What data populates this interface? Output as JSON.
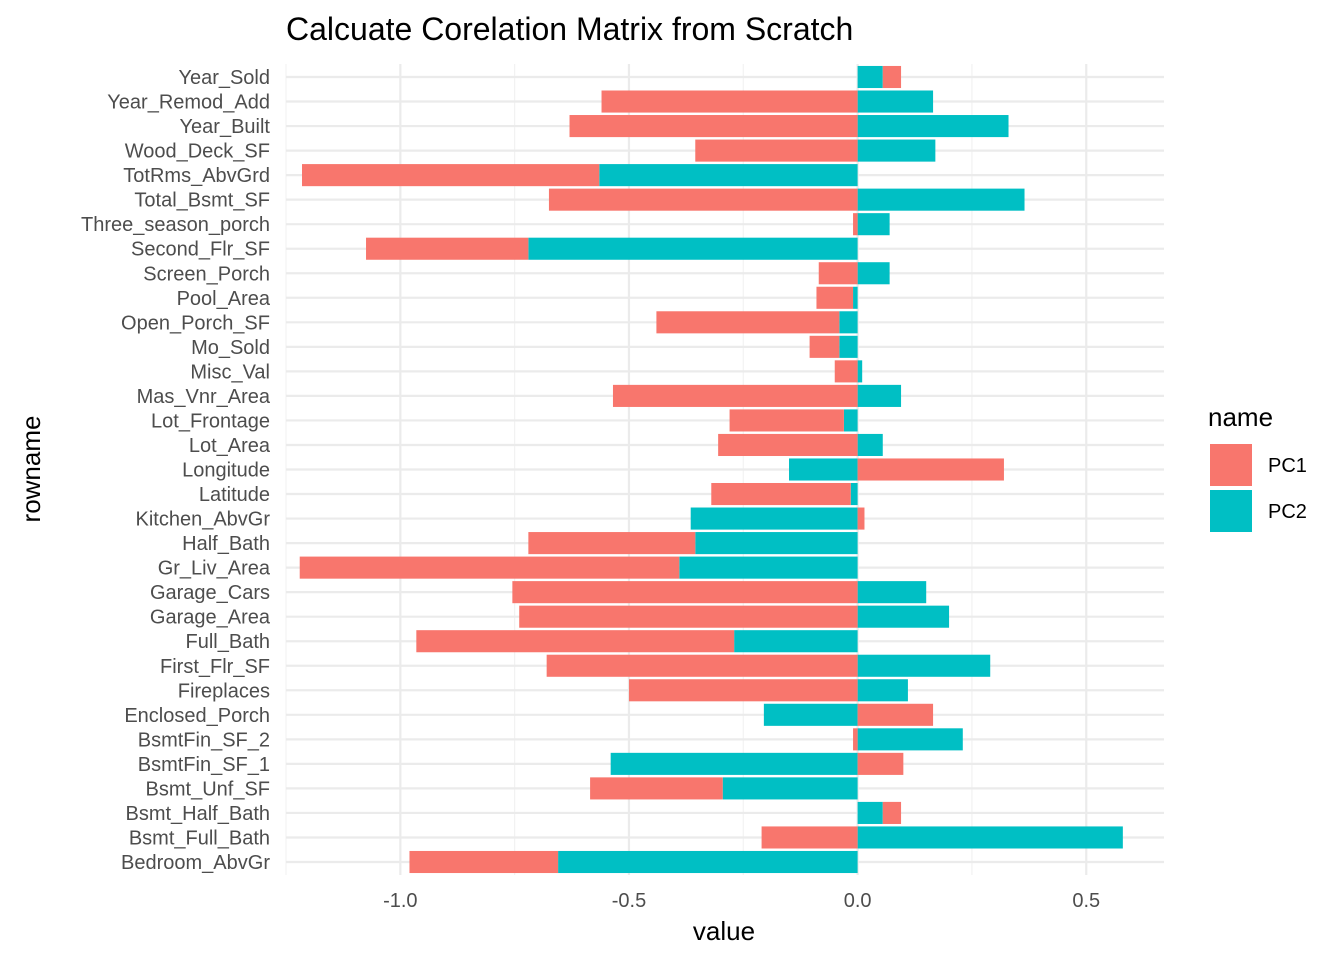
{
  "chart_data": {
    "type": "bar",
    "orientation": "horizontal",
    "stacked": true,
    "title": "Calcuate Corelation Matrix from Scratch",
    "xlabel": "value",
    "ylabel": "rowname",
    "xlim": [
      -1.25,
      0.67
    ],
    "xticks": [
      -1.0,
      -0.5,
      0.0,
      0.5
    ],
    "xtick_labels": [
      "-1.0",
      "-0.5",
      "0.0",
      "0.5"
    ],
    "grid": true,
    "legend": {
      "title": "name",
      "position": "right"
    },
    "categories": [
      "Bedroom_AbvGr",
      "Bsmt_Full_Bath",
      "Bsmt_Half_Bath",
      "Bsmt_Unf_SF",
      "BsmtFin_SF_1",
      "BsmtFin_SF_2",
      "Enclosed_Porch",
      "Fireplaces",
      "First_Flr_SF",
      "Full_Bath",
      "Garage_Area",
      "Garage_Cars",
      "Gr_Liv_Area",
      "Half_Bath",
      "Kitchen_AbvGr",
      "Latitude",
      "Longitude",
      "Lot_Area",
      "Lot_Frontage",
      "Mas_Vnr_Area",
      "Misc_Val",
      "Mo_Sold",
      "Open_Porch_SF",
      "Pool_Area",
      "Screen_Porch",
      "Second_Flr_SF",
      "Three_season_porch",
      "Total_Bsmt_SF",
      "TotRms_AbvGrd",
      "Wood_Deck_SF",
      "Year_Built",
      "Year_Remod_Add",
      "Year_Sold"
    ],
    "series": [
      {
        "name": "PC1",
        "color": "#F8766D",
        "values": [
          -0.325,
          -0.21,
          0.04,
          -0.29,
          0.1,
          -0.01,
          0.165,
          -0.5,
          -0.68,
          -0.695,
          -0.74,
          -0.755,
          -0.83,
          -0.365,
          0.015,
          -0.305,
          0.32,
          -0.305,
          -0.25,
          -0.535,
          -0.05,
          -0.065,
          -0.4,
          -0.08,
          -0.085,
          -0.355,
          -0.01,
          -0.675,
          -0.65,
          -0.355,
          -0.63,
          -0.56,
          0.04
        ]
      },
      {
        "name": "PC2",
        "color": "#00BFC4",
        "values": [
          -0.655,
          0.58,
          0.055,
          -0.295,
          -0.54,
          0.23,
          -0.205,
          0.11,
          0.29,
          -0.27,
          0.2,
          0.15,
          -0.39,
          -0.355,
          -0.365,
          -0.015,
          -0.15,
          0.055,
          -0.03,
          0.095,
          0.01,
          -0.04,
          -0.04,
          -0.01,
          0.07,
          -0.72,
          0.07,
          0.365,
          -0.565,
          0.17,
          0.33,
          0.165,
          0.055
        ]
      }
    ]
  }
}
